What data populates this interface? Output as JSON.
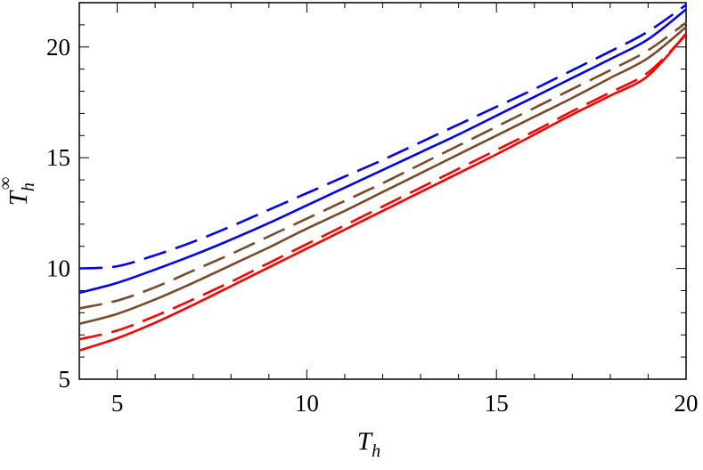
{
  "chart_data": {
    "type": "line",
    "xlabel": {
      "main": "T",
      "sub": "h"
    },
    "ylabel": {
      "main": "T",
      "sub": "h",
      "sup": "∞"
    },
    "xlim": [
      4,
      20
    ],
    "ylim": [
      5,
      22
    ],
    "xticks": [
      "5",
      "10",
      "15",
      "20"
    ],
    "yticks": [
      "5",
      "10",
      "15",
      "20"
    ],
    "grid": false,
    "series": [
      {
        "color": "#0000ff",
        "dash": true,
        "x": [
          4,
          5,
          6,
          7,
          8,
          9,
          10,
          11,
          12,
          13,
          14,
          15,
          16,
          17,
          18,
          19,
          20
        ],
        "y": [
          10.0,
          10.1,
          10.6,
          11.2,
          11.9,
          12.65,
          13.4,
          14.15,
          14.9,
          15.7,
          16.5,
          17.3,
          18.1,
          18.95,
          19.8,
          20.7,
          21.9
        ]
      },
      {
        "color": "#0000ff",
        "dash": false,
        "x": [
          4,
          5,
          6,
          7,
          8,
          9,
          10,
          11,
          12,
          13,
          14,
          15,
          16,
          17,
          18,
          19,
          20
        ],
        "y": [
          8.9,
          9.35,
          9.95,
          10.6,
          11.3,
          12.05,
          12.85,
          13.65,
          14.45,
          15.25,
          16.05,
          16.9,
          17.75,
          18.6,
          19.45,
          20.35,
          21.7
        ]
      },
      {
        "color": "#7a4a2a",
        "dash": true,
        "x": [
          4,
          5,
          6,
          7,
          8,
          9,
          10,
          11,
          12,
          13,
          14,
          15,
          16,
          17,
          18,
          19,
          20
        ],
        "y": [
          8.2,
          8.55,
          9.15,
          9.9,
          10.65,
          11.45,
          12.25,
          13.05,
          13.85,
          14.7,
          15.55,
          16.4,
          17.25,
          18.1,
          18.95,
          19.85,
          21.1
        ]
      },
      {
        "color": "#7a4a2a",
        "dash": false,
        "x": [
          4,
          5,
          6,
          7,
          8,
          9,
          10,
          11,
          12,
          13,
          14,
          15,
          16,
          17,
          18,
          19,
          20
        ],
        "y": [
          7.5,
          7.95,
          8.6,
          9.35,
          10.15,
          10.95,
          11.8,
          12.6,
          13.45,
          14.3,
          15.15,
          16.0,
          16.85,
          17.7,
          18.6,
          19.5,
          20.9
        ]
      },
      {
        "color": "#ff0000",
        "dash": true,
        "x": [
          4,
          5,
          6,
          7,
          8,
          9,
          10,
          11,
          12,
          13,
          14,
          15,
          16,
          17,
          18,
          19,
          20
        ],
        "y": [
          6.8,
          7.2,
          7.85,
          8.6,
          9.4,
          10.25,
          11.1,
          11.95,
          12.8,
          13.65,
          14.5,
          15.35,
          16.2,
          17.1,
          17.95,
          18.85,
          20.55
        ]
      },
      {
        "color": "#ff0000",
        "dash": false,
        "x": [
          4,
          5,
          6,
          7,
          8,
          9,
          10,
          11,
          12,
          13,
          14,
          15,
          16,
          17,
          18,
          19,
          20
        ],
        "y": [
          6.3,
          6.85,
          7.55,
          8.35,
          9.2,
          10.05,
          10.9,
          11.75,
          12.6,
          13.45,
          14.3,
          15.15,
          16.05,
          16.95,
          17.8,
          18.7,
          20.6
        ]
      }
    ]
  }
}
